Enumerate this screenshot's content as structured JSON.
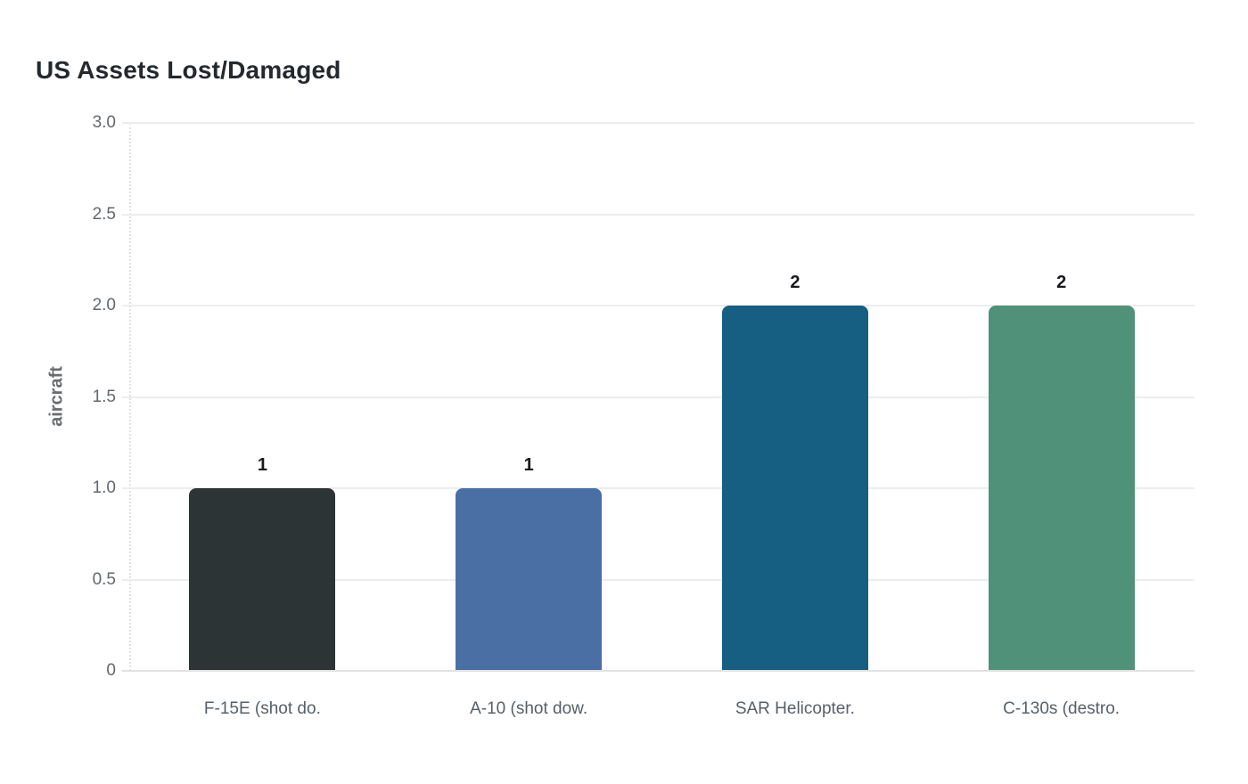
{
  "chart_data": {
    "type": "bar",
    "title": "US Assets Lost/Damaged",
    "ylabel": "aircraft",
    "xlabel": "",
    "categories": [
      "F-15E (shot do.",
      "A-10 (shot dow.",
      "SAR Helicopter.",
      "C-130s (destro."
    ],
    "values": [
      1,
      1,
      2,
      2
    ],
    "value_labels": [
      "1",
      "1",
      "2",
      "2"
    ],
    "bar_colors": [
      "#2d3436",
      "#4a6fa5",
      "#175f82",
      "#4f9179"
    ],
    "yticks": [
      0,
      0.5,
      1.0,
      1.5,
      2.0,
      2.5,
      3.0
    ],
    "ytick_labels": [
      "0",
      "0.5",
      "1.0",
      "1.5",
      "2.0",
      "2.5",
      "3.0"
    ],
    "ylim": [
      0,
      3
    ],
    "grid": "horizontal",
    "legend": "none",
    "background_color": "#ffffff",
    "grid_color": "#ededed",
    "axis_line_color": "#e2e2e2",
    "title_color": "#24292f",
    "tick_label_color": "#63686d",
    "category_label_color": "#566069",
    "value_label_color": "#17191c"
  }
}
